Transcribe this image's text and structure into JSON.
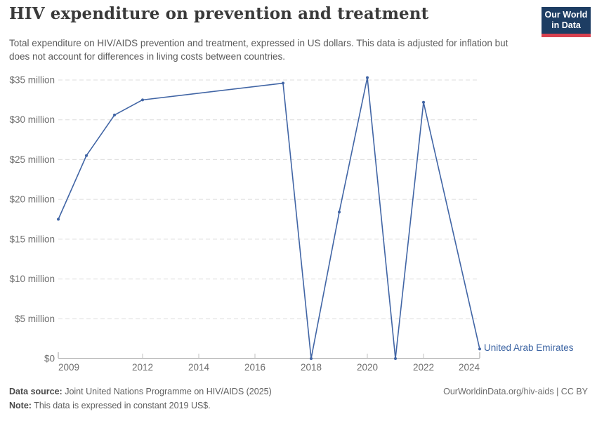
{
  "header": {
    "title": "HIV expenditure on prevention and treatment",
    "subtitle": "Total expenditure on HIV/AIDS prevention and treatment, expressed in US dollars. This data is adjusted for inflation but does not account for differences in living costs between countries."
  },
  "logo": {
    "line1": "Our World",
    "line2": "in Data",
    "background": "#1d3d63",
    "accent": "#d8414f"
  },
  "chart_data": {
    "type": "line",
    "title": "HIV expenditure on prevention and treatment",
    "series": [
      {
        "name": "United Arab Emirates",
        "x": [
          2009,
          2010,
          2011,
          2012,
          2017,
          2018,
          2019,
          2020,
          2021,
          2022,
          2024
        ],
        "values_usd_million": [
          17.5,
          25.5,
          30.6,
          32.5,
          34.6,
          0,
          18.4,
          35.3,
          0,
          32.2,
          1.2
        ]
      }
    ],
    "xlabel": "",
    "ylabel": "",
    "xlim": [
      2009,
      2024
    ],
    "ylim": [
      0,
      35
    ],
    "x_ticks": [
      2009,
      2012,
      2014,
      2016,
      2018,
      2020,
      2022,
      2024
    ],
    "y_ticks": [
      {
        "value": 0,
        "label": "$0"
      },
      {
        "value": 5,
        "label": "$5 million"
      },
      {
        "value": 10,
        "label": "$10 million"
      },
      {
        "value": 15,
        "label": "$15 million"
      },
      {
        "value": 20,
        "label": "$20 million"
      },
      {
        "value": 25,
        "label": "$25 million"
      },
      {
        "value": 30,
        "label": "$30 million"
      },
      {
        "value": 35,
        "label": "$35 million"
      }
    ],
    "grid": "horizontal-dashed",
    "legend_position": "end-of-line-label",
    "line_color": "#4165a5",
    "gridline_color": "#dcdcdc",
    "axis_line_color": "#9e9e9e",
    "tick_color": "#c2c2c2",
    "tick_label_color": "#6e6e6e"
  },
  "entity_label": "United Arab Emirates",
  "footer": {
    "data_source_label": "Data source:",
    "data_source_value": " Joint United Nations Programme on HIV/AIDS (2025)",
    "note_label": "Note:",
    "note_value": " This data is expressed in constant 2019 US$.",
    "attribution": "OurWorldinData.org/hiv-aids | CC BY"
  }
}
